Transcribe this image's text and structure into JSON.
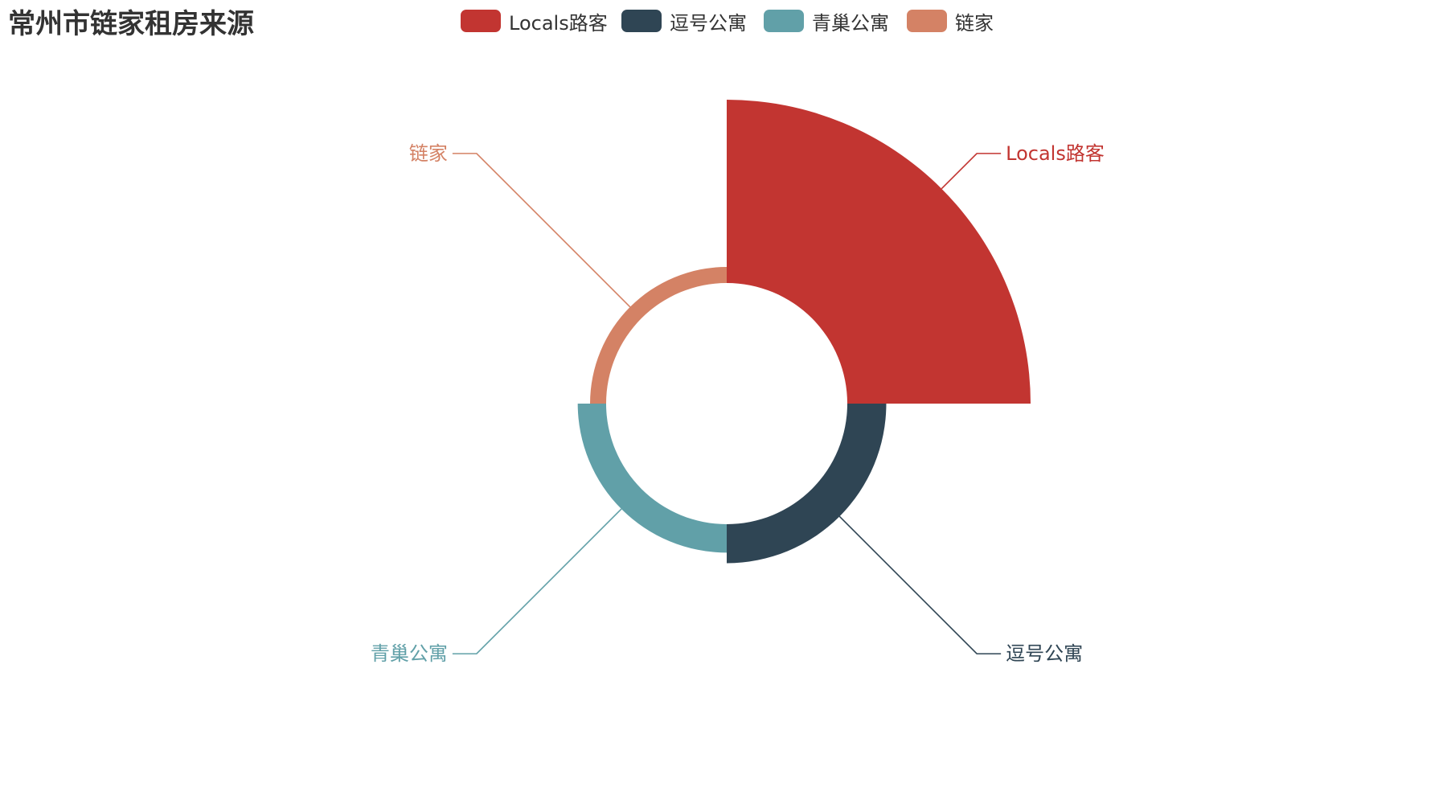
{
  "title": "常州市链家租房来源",
  "legend": [
    {
      "label": "Locals路客",
      "color": "#c23531"
    },
    {
      "label": "逗号公寓",
      "color": "#2f4554"
    },
    {
      "label": "青巢公寓",
      "color": "#61a0a8"
    },
    {
      "label": "链家",
      "color": "#d48265"
    }
  ],
  "chart_data": {
    "type": "pie",
    "rose_type": "radius",
    "title": "常州市链家租房来源",
    "legend_position": "top-center",
    "series": [
      {
        "name": "Locals路客",
        "value": 100,
        "color": "#c23531"
      },
      {
        "name": "逗号公寓",
        "value": 18,
        "color": "#2f4554"
      },
      {
        "name": "青巢公寓",
        "value": 12,
        "color": "#61a0a8"
      },
      {
        "name": "链家",
        "value": 5,
        "color": "#d48265"
      }
    ]
  }
}
